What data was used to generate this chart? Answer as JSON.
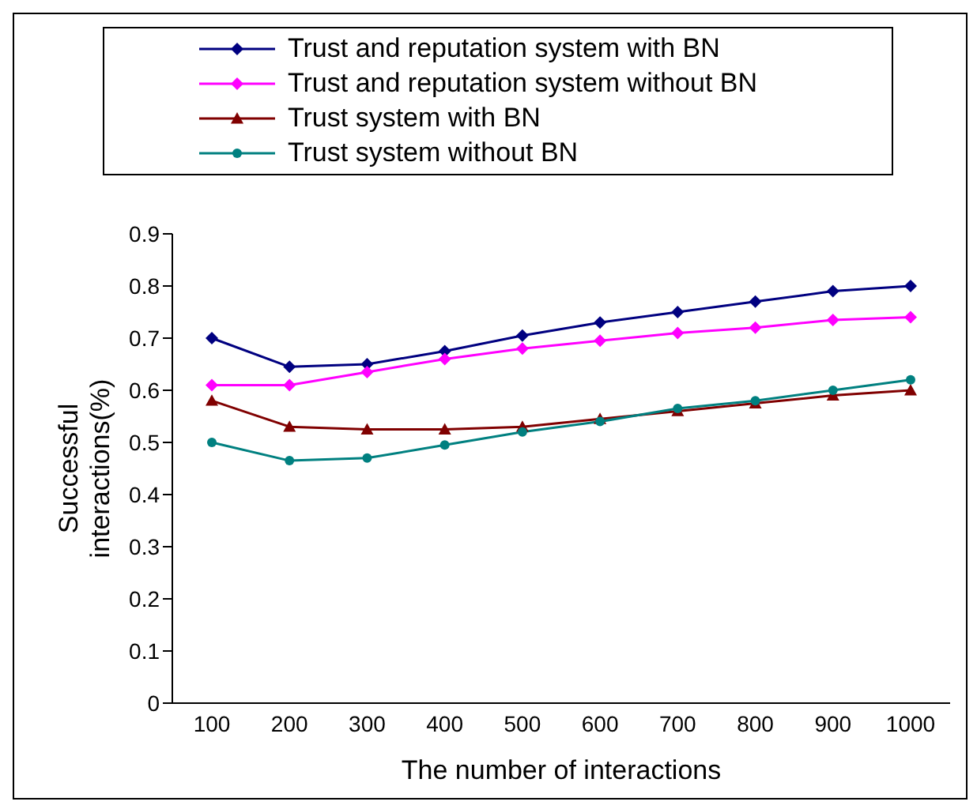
{
  "chart_data": {
    "type": "line",
    "xlabel": "The number of interactions",
    "ylabel": "Successful interactions(%)",
    "categories": [
      "100",
      "200",
      "300",
      "400",
      "500",
      "600",
      "700",
      "800",
      "900",
      "1000"
    ],
    "series": [
      {
        "name": "Trust and reputation system with BN",
        "color": "#000080",
        "marker": "diamond",
        "values": [
          0.7,
          0.645,
          0.65,
          0.675,
          0.705,
          0.73,
          0.75,
          0.77,
          0.79,
          0.8
        ]
      },
      {
        "name": "Trust and reputation system without BN",
        "color": "#ff00ff",
        "marker": "diamond",
        "values": [
          0.61,
          0.61,
          0.635,
          0.66,
          0.68,
          0.695,
          0.71,
          0.72,
          0.735,
          0.74
        ]
      },
      {
        "name": "Trust system with BN",
        "color": "#800000",
        "marker": "triangle",
        "values": [
          0.58,
          0.53,
          0.525,
          0.525,
          0.53,
          0.545,
          0.56,
          0.575,
          0.59,
          0.6
        ]
      },
      {
        "name": "Trust system without BN",
        "color": "#008080",
        "marker": "circle",
        "values": [
          0.5,
          0.465,
          0.47,
          0.495,
          0.52,
          0.54,
          0.565,
          0.58,
          0.6,
          0.62
        ]
      }
    ],
    "ylim": [
      0,
      0.9
    ],
    "yticks": [
      0,
      0.1,
      0.2,
      0.3,
      0.4,
      0.5,
      0.6,
      0.7,
      0.8,
      0.9
    ],
    "grid": false,
    "legend": "top",
    "line_style": "solid"
  }
}
